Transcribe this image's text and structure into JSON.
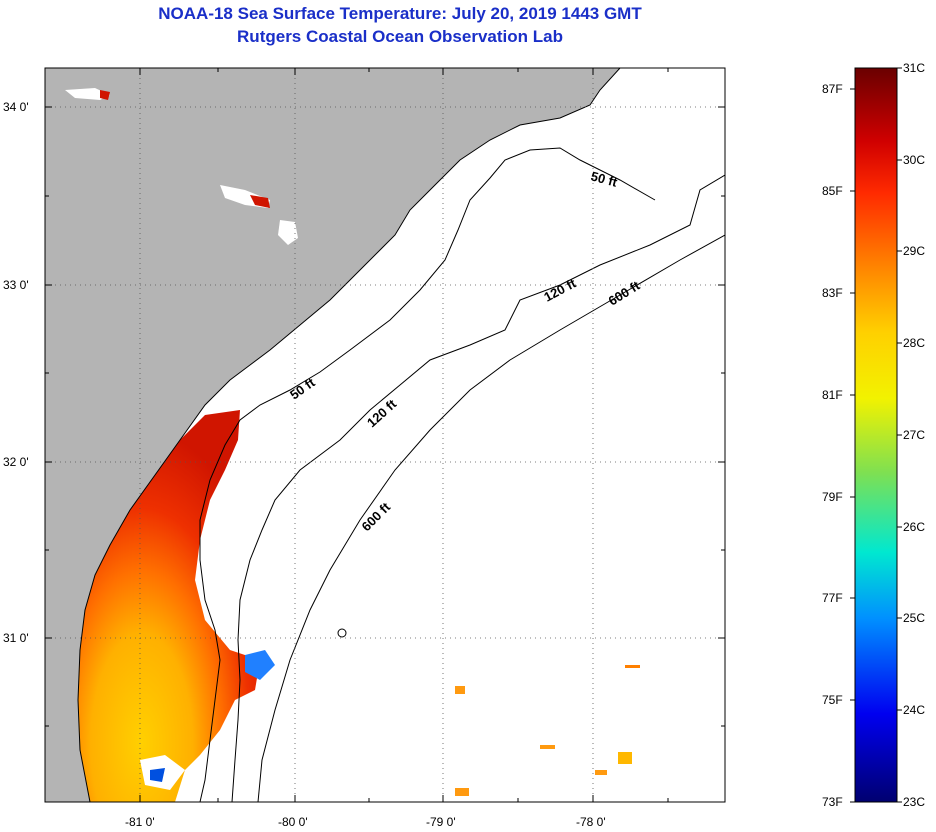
{
  "title": {
    "line1": "NOAA-18 Sea Surface Temperature:  July 20, 2019 1443 GMT",
    "line2": "Rutgers Coastal Ocean Observation Lab"
  },
  "axes": {
    "lat_labels": [
      "34 0'",
      "33 0'",
      "32 0'",
      "31 0'"
    ],
    "lon_labels": [
      "-81 0'",
      "-80 0'",
      "-79 0'",
      "-78 0'"
    ]
  },
  "contours": [
    "50 ft",
    "120 ft",
    "600 ft",
    "50 ft",
    "120 ft",
    "600 ft"
  ],
  "colorbar": {
    "celsius": [
      "31C",
      "30C",
      "29C",
      "28C",
      "27C",
      "26C",
      "25C",
      "24C",
      "23C"
    ],
    "fahrenheit": [
      "87F",
      "85F",
      "83F",
      "81F",
      "79F",
      "77F",
      "75F",
      "73F"
    ]
  },
  "colors": {
    "land": "#b4b4b4",
    "ocean": "#ffffff",
    "title": "#1a2fc8"
  }
}
